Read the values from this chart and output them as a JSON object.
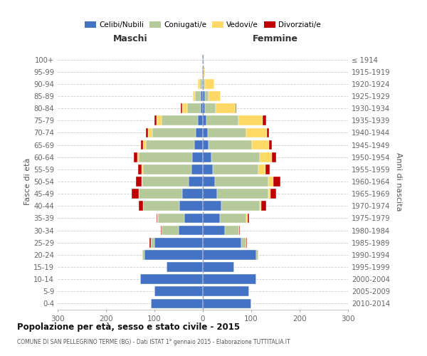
{
  "age_groups": [
    "0-4",
    "5-9",
    "10-14",
    "15-19",
    "20-24",
    "25-29",
    "30-34",
    "35-39",
    "40-44",
    "45-49",
    "50-54",
    "55-59",
    "60-64",
    "65-69",
    "70-74",
    "75-79",
    "80-84",
    "85-89",
    "90-94",
    "95-99",
    "100+"
  ],
  "birth_years": [
    "2010-2014",
    "2005-2009",
    "2000-2004",
    "1995-1999",
    "1990-1994",
    "1985-1989",
    "1980-1984",
    "1975-1979",
    "1970-1974",
    "1965-1969",
    "1960-1964",
    "1955-1959",
    "1950-1954",
    "1945-1949",
    "1940-1944",
    "1935-1939",
    "1930-1934",
    "1925-1929",
    "1920-1924",
    "1915-1919",
    "≤ 1914"
  ],
  "maschi": {
    "celibi": [
      107,
      100,
      130,
      75,
      120,
      100,
      50,
      38,
      48,
      42,
      30,
      24,
      22,
      18,
      15,
      10,
      5,
      4,
      2,
      1,
      1
    ],
    "coniugati": [
      0,
      0,
      0,
      0,
      5,
      8,
      35,
      55,
      75,
      90,
      95,
      100,
      110,
      100,
      90,
      75,
      28,
      12,
      4,
      1,
      0
    ],
    "vedovi": [
      0,
      0,
      0,
      0,
      0,
      0,
      0,
      1,
      0,
      1,
      1,
      2,
      3,
      5,
      8,
      10,
      10,
      5,
      5,
      0,
      0
    ],
    "divorziati": [
      0,
      0,
      0,
      0,
      0,
      3,
      2,
      2,
      10,
      14,
      12,
      8,
      8,
      5,
      5,
      5,
      2,
      0,
      0,
      0,
      0
    ]
  },
  "femmine": {
    "nubili": [
      100,
      95,
      110,
      65,
      110,
      80,
      45,
      35,
      38,
      30,
      25,
      20,
      18,
      12,
      10,
      8,
      5,
      4,
      2,
      1,
      1
    ],
    "coniugate": [
      0,
      0,
      0,
      0,
      5,
      10,
      30,
      55,
      80,
      105,
      110,
      95,
      100,
      90,
      80,
      65,
      22,
      8,
      2,
      0,
      0
    ],
    "vedove": [
      0,
      0,
      0,
      0,
      0,
      0,
      0,
      2,
      3,
      5,
      10,
      15,
      25,
      35,
      42,
      50,
      40,
      25,
      20,
      3,
      1
    ],
    "divorziate": [
      0,
      0,
      0,
      0,
      0,
      1,
      2,
      3,
      10,
      12,
      15,
      8,
      8,
      5,
      5,
      8,
      2,
      0,
      0,
      0,
      0
    ]
  },
  "colors": {
    "celibi_nubili": "#4472c4",
    "coniugati_e": "#b5c99a",
    "vedovi_e": "#ffd966",
    "divorziati_e": "#c00000"
  },
  "xlim": 300,
  "title": "Popolazione per età, sesso e stato civile - 2015",
  "subtitle": "COMUNE DI SAN PELLEGRINO TERME (BG) - Dati ISTAT 1° gennaio 2015 - Elaborazione TUTTITALIA.IT",
  "ylabel_left": "Fasce di età",
  "ylabel_right": "Anni di nascita",
  "xlabel_maschi": "Maschi",
  "xlabel_femmine": "Femmine",
  "legend_labels": [
    "Celibi/Nubili",
    "Coniugati/e",
    "Vedovi/e",
    "Divorziati/e"
  ],
  "background_color": "#ffffff",
  "grid_color": "#cccccc",
  "bar_edge_color": "#ffffff",
  "bar_linewidth": 0.3
}
